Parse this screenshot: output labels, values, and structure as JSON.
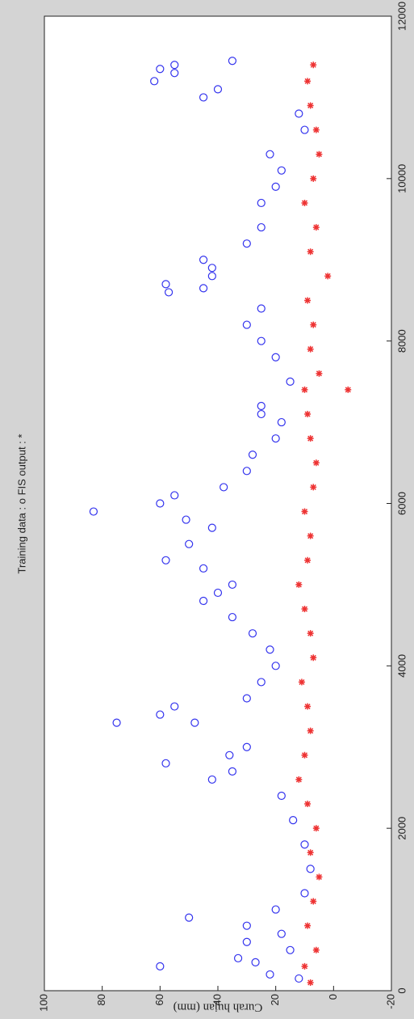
{
  "chart_data": {
    "type": "scatter",
    "title": "Training data : o    FIS output : *",
    "ylabel": "Curah hujan (mm)",
    "xlim": [
      0,
      12000
    ],
    "ylim": [
      -20,
      100
    ],
    "xticks": [
      0,
      2000,
      4000,
      6000,
      8000,
      10000,
      12000
    ],
    "yticks": [
      -20,
      0,
      20,
      40,
      60,
      80,
      100
    ],
    "series": [
      {
        "color": "#3333ee",
        "marker": "o",
        "x": [
          300,
          350,
          400,
          200,
          600,
          900,
          800,
          1000,
          150,
          500,
          700,
          1200,
          1500,
          1800,
          2100,
          2400,
          2600,
          2700,
          2800,
          2900,
          3000,
          3300,
          3300,
          3400,
          3500,
          3600,
          3800,
          4000,
          4200,
          4400,
          4600,
          4800,
          4900,
          5000,
          5200,
          5300,
          5500,
          5700,
          5800,
          5900,
          6000,
          6100,
          6200,
          6400,
          6600,
          6800,
          7000,
          7100,
          7200,
          7500,
          7800,
          8000,
          8200,
          8400,
          8600,
          8650,
          8700,
          8800,
          8900,
          9000,
          9200,
          9400,
          9700,
          9900,
          10100,
          10300,
          10600,
          10800,
          11000,
          11100,
          11200,
          11300,
          11350,
          11400,
          11450
        ],
        "y": [
          60,
          27,
          33,
          22,
          30,
          50,
          30,
          20,
          12,
          15,
          18,
          10,
          8,
          10,
          14,
          18,
          42,
          35,
          58,
          36,
          30,
          75,
          48,
          60,
          55,
          30,
          25,
          20,
          22,
          28,
          35,
          45,
          40,
          35,
          45,
          58,
          50,
          42,
          51,
          83,
          60,
          55,
          38,
          30,
          28,
          20,
          18,
          25,
          25,
          15,
          20,
          25,
          30,
          25,
          57,
          45,
          58,
          42,
          42,
          45,
          30,
          25,
          25,
          20,
          18,
          22,
          10,
          12,
          45,
          40,
          62,
          55,
          60,
          55,
          35
        ]
      },
      {
        "color": "#ee3333",
        "marker": "*",
        "x": [
          100,
          300,
          500,
          800,
          1100,
          1400,
          1700,
          2000,
          2300,
          2600,
          2900,
          3200,
          3500,
          3800,
          4100,
          4400,
          4700,
          5000,
          5300,
          5600,
          5900,
          6200,
          6500,
          6800,
          7100,
          7400,
          7400,
          7600,
          7900,
          8200,
          8500,
          8800,
          9100,
          9400,
          9700,
          10000,
          10300,
          10600,
          10900,
          11200,
          11400
        ],
        "y": [
          8,
          10,
          6,
          9,
          7,
          5,
          8,
          6,
          9,
          12,
          10,
          8,
          9,
          11,
          7,
          8,
          10,
          12,
          9,
          8,
          10,
          7,
          6,
          8,
          9,
          10,
          -5,
          5,
          8,
          7,
          9,
          2,
          8,
          6,
          10,
          7,
          5,
          6,
          8,
          9,
          7
        ]
      }
    ]
  }
}
